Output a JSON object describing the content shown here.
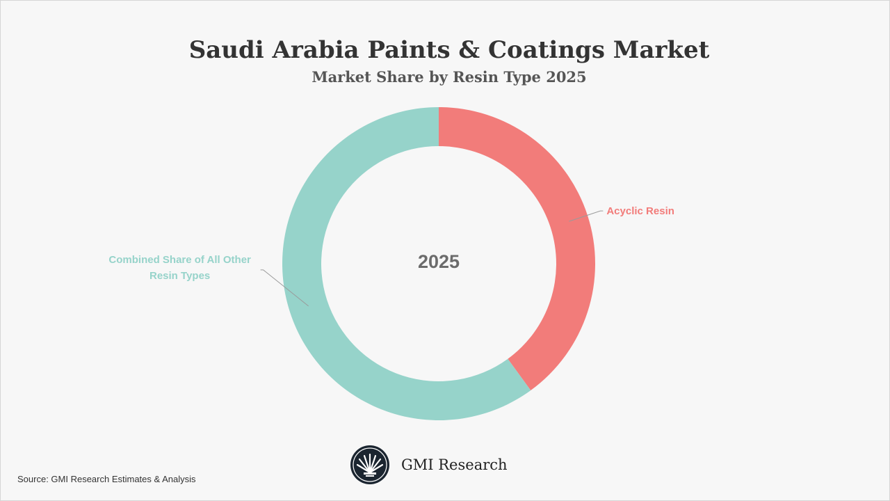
{
  "header": {
    "title": "Saudi Arabia Paints & Coatings Market",
    "subtitle": "Market Share by Resin Type 2025"
  },
  "chart_data": {
    "type": "pie",
    "variant": "donut",
    "title": "Saudi Arabia Paints & Coatings Market",
    "subtitle": "Market Share by Resin Type 2025",
    "center_label": "2025",
    "slices": [
      {
        "label": "Acyclic Resin",
        "value": 40,
        "color": "#f27c7a"
      },
      {
        "label": "Combined Share of All Other Resin Types",
        "label_lines": [
          "Combined Share of All Other",
          "Resin Types"
        ],
        "value": 60,
        "color": "#96d3ca"
      }
    ]
  },
  "footer": {
    "source": "Source: GMI Research Estimates & Analysis",
    "brand": "GMI Research",
    "logo_icon": "gmi-fan-logo-icon"
  }
}
